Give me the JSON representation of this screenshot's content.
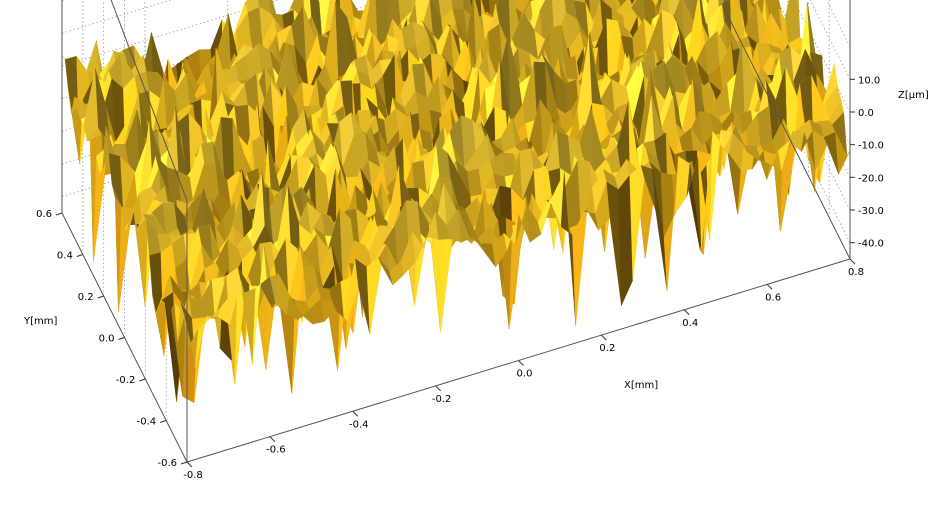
{
  "chart_data": {
    "type": "surface",
    "title": "",
    "x_axis": {
      "label": "X[mm]",
      "range": [
        -0.8,
        0.8
      ],
      "ticks": [
        -0.8,
        -0.6,
        -0.4,
        -0.2,
        0.0,
        0.2,
        0.4,
        0.6,
        0.8
      ],
      "tick_labels": [
        "-0.8",
        "-0.6",
        "-0.4",
        "-0.2",
        "0.0",
        "0.2",
        "0.4",
        "0.6",
        "0.8"
      ]
    },
    "y_axis": {
      "label": "Y[mm]",
      "range": [
        -0.6,
        0.6
      ],
      "ticks": [
        -0.6,
        -0.4,
        -0.2,
        0.0,
        0.2,
        0.4,
        0.6
      ],
      "tick_labels": [
        "-0.6",
        "-0.4",
        "-0.2",
        "0.0",
        "0.2",
        "0.4",
        "0.6"
      ]
    },
    "z_axis": {
      "label": "Z[µm]",
      "range": [
        -45,
        15
      ],
      "ticks": [
        -40,
        -30,
        -20,
        -10,
        0,
        10
      ],
      "tick_labels": [
        "-40.0",
        "-30.0",
        "-20.0",
        "-10.0",
        "0.0",
        "10.0"
      ]
    },
    "grid": true,
    "colors": {
      "surface_high": "#f3d94a",
      "surface_mid": "#c89a14",
      "surface_low": "#4a1404",
      "box": "#555555",
      "grid": "#9a9a9a"
    }
  }
}
